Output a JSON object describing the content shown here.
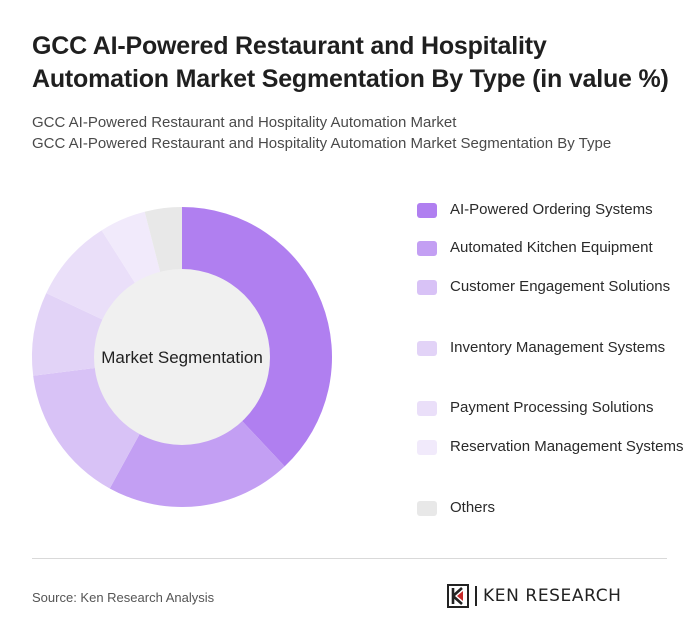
{
  "header": {
    "title": "GCC AI-Powered Restaurant and Hospitality Automation Market Segmentation By Type (in value %)",
    "subtitle_line1": "GCC AI-Powered Restaurant and Hospitality Automation Market",
    "subtitle_line2": "GCC AI-Powered Restaurant and Hospitality Automation Market Segmentation By Type"
  },
  "chart_data": {
    "type": "pie",
    "style": "donut",
    "center_label": "Market Segmentation",
    "legend_position": "right",
    "categories": [
      "AI-Powered Ordering Systems",
      "Automated Kitchen Equipment",
      "Customer Engagement Solutions",
      "Inventory Management Systems",
      "Payment Processing Solutions",
      "Reservation Management Systems",
      "Others"
    ],
    "values": [
      38,
      20,
      15,
      9,
      9,
      5,
      4
    ],
    "colors": [
      "#b07ff0",
      "#c39ff3",
      "#d8c2f6",
      "#e2d3f7",
      "#eadff9",
      "#f1eafb",
      "#e8e8e8"
    ]
  },
  "footer": {
    "source": "Source: Ken Research Analysis",
    "brand": "KEN RESEARCH"
  }
}
